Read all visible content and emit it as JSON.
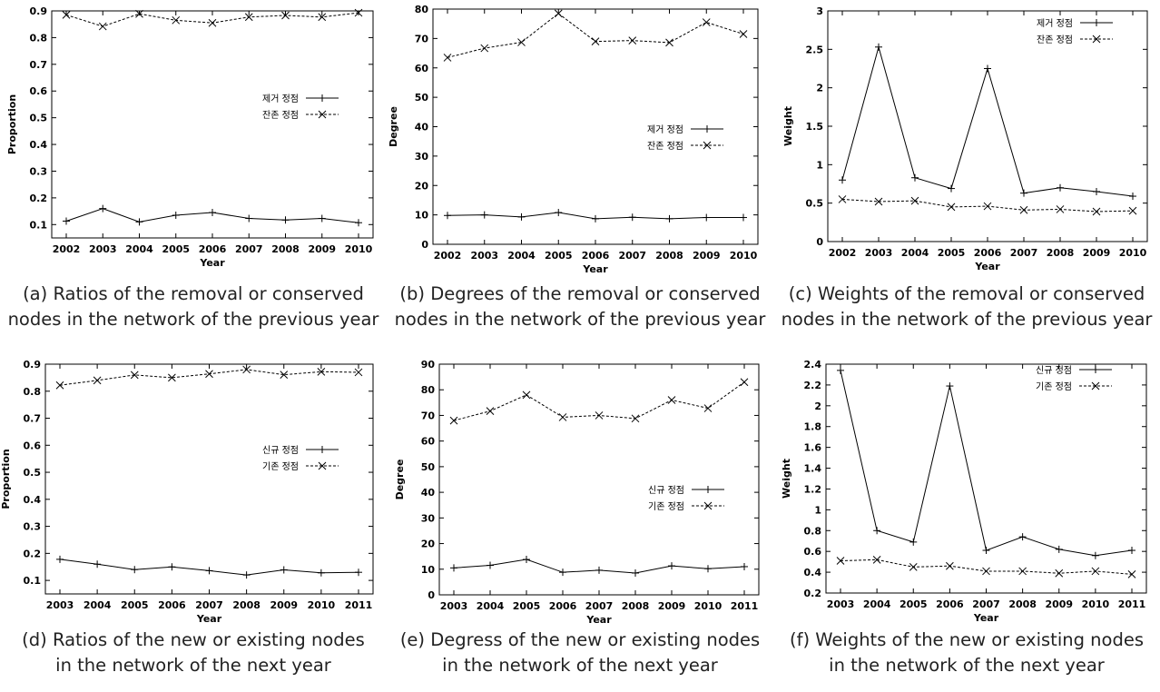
{
  "chart_data": [
    {
      "type": "line",
      "x": [
        2002,
        2003,
        2004,
        2005,
        2006,
        2007,
        2008,
        2009,
        2010
      ],
      "series": [
        {
          "name": "제거 정점",
          "values": [
            0.113,
            0.16,
            0.11,
            0.135,
            0.145,
            0.123,
            0.117,
            0.123,
            0.107
          ]
        },
        {
          "name": "잔존 정점",
          "values": [
            0.885,
            0.842,
            0.889,
            0.865,
            0.855,
            0.877,
            0.883,
            0.877,
            0.893
          ]
        }
      ],
      "xlabel": "Year",
      "ylabel": "Proportion",
      "ylim": [
        0.05,
        0.9
      ],
      "yticks": [
        0.1,
        0.2,
        0.3,
        0.4,
        0.5,
        0.6,
        0.7,
        0.8,
        0.9
      ],
      "legend_position": "middle-right",
      "caption": [
        "(a) Ratios of the removal or conserved",
        "nodes in the network of the previous year"
      ]
    },
    {
      "type": "line",
      "x": [
        2002,
        2003,
        2004,
        2005,
        2006,
        2007,
        2008,
        2009,
        2010
      ],
      "series": [
        {
          "name": "제거 정점",
          "values": [
            9.8,
            10,
            9.3,
            10.8,
            8.7,
            9.2,
            8.7,
            9.1,
            9.1
          ]
        },
        {
          "name": "잔존 정점",
          "values": [
            63.5,
            66.7,
            68.7,
            78.5,
            69,
            69.3,
            68.6,
            75.5,
            71.5
          ]
        }
      ],
      "xlabel": "Year",
      "ylabel": "Degree",
      "ylim": [
        0,
        80
      ],
      "yticks": [
        0,
        10,
        20,
        30,
        40,
        50,
        60,
        70,
        80
      ],
      "legend_position": "middle-right",
      "caption": [
        "(b) Degrees of the removal or conserved",
        "nodes in the network of the previous year"
      ]
    },
    {
      "type": "line",
      "x": [
        2002,
        2003,
        2004,
        2005,
        2006,
        2007,
        2008,
        2009,
        2010
      ],
      "series": [
        {
          "name": "제거 정점",
          "values": [
            0.8,
            2.53,
            0.83,
            0.69,
            2.25,
            0.63,
            0.7,
            0.65,
            0.59
          ]
        },
        {
          "name": "잔존 정점",
          "values": [
            0.55,
            0.52,
            0.53,
            0.45,
            0.46,
            0.41,
            0.42,
            0.39,
            0.4
          ]
        }
      ],
      "xlabel": "Year",
      "ylabel": "Weight",
      "ylim": [
        0,
        3
      ],
      "yticks": [
        0,
        0.5,
        1,
        1.5,
        2,
        2.5,
        3
      ],
      "legend_position": "top-right",
      "caption": [
        "(c) Weights of the removal or conserved",
        "nodes in the network of the previous year"
      ]
    },
    {
      "type": "line",
      "x": [
        2003,
        2004,
        2005,
        2006,
        2007,
        2008,
        2009,
        2010,
        2011
      ],
      "series": [
        {
          "name": "신규 정점",
          "values": [
            0.178,
            0.16,
            0.14,
            0.15,
            0.136,
            0.12,
            0.139,
            0.128,
            0.13
          ]
        },
        {
          "name": "기존 정점",
          "values": [
            0.822,
            0.84,
            0.86,
            0.85,
            0.864,
            0.88,
            0.861,
            0.872,
            0.87
          ]
        }
      ],
      "xlabel": "Year",
      "ylabel": "Proportion",
      "ylim": [
        0.05,
        0.9
      ],
      "yticks": [
        0.1,
        0.2,
        0.3,
        0.4,
        0.5,
        0.6,
        0.7,
        0.8,
        0.9
      ],
      "legend_position": "middle-right",
      "caption": [
        "(d) Ratios of the new or existing nodes",
        "in the network of the next year"
      ]
    },
    {
      "type": "line",
      "x": [
        2003,
        2004,
        2005,
        2006,
        2007,
        2008,
        2009,
        2010,
        2011
      ],
      "series": [
        {
          "name": "신규 정점",
          "values": [
            10.5,
            11.5,
            13.8,
            8.8,
            9.6,
            8.5,
            11.3,
            10.2,
            11
          ]
        },
        {
          "name": "기존 정점",
          "values": [
            68,
            71.7,
            78,
            69.3,
            70,
            68.8,
            76,
            72.8,
            83
          ]
        }
      ],
      "xlabel": "Year",
      "ylabel": "Degree",
      "ylim": [
        0,
        90
      ],
      "yticks": [
        0,
        10,
        20,
        30,
        40,
        50,
        60,
        70,
        80,
        90
      ],
      "legend_position": "middle-right",
      "caption": [
        "(e) Degress of the new or existing nodes",
        "in the network of the next year"
      ]
    },
    {
      "type": "line",
      "x": [
        2003,
        2004,
        2005,
        2006,
        2007,
        2008,
        2009,
        2010,
        2011
      ],
      "series": [
        {
          "name": "신규 정점",
          "values": [
            2.34,
            0.8,
            0.69,
            2.19,
            0.61,
            0.74,
            0.62,
            0.56,
            0.61
          ]
        },
        {
          "name": "기존 정점",
          "values": [
            0.51,
            0.52,
            0.45,
            0.46,
            0.41,
            0.41,
            0.39,
            0.41,
            0.38
          ]
        }
      ],
      "xlabel": "Year",
      "ylabel": "Weight",
      "ylim": [
        0.2,
        2.4
      ],
      "yticks": [
        0.2,
        0.4,
        0.6,
        0.8,
        1,
        1.2,
        1.4,
        1.6,
        1.8,
        2,
        2.2,
        2.4
      ],
      "legend_position": "top-right",
      "caption": [
        "(f) Weights of the new or existing nodes",
        "in the network of the next year"
      ]
    }
  ]
}
